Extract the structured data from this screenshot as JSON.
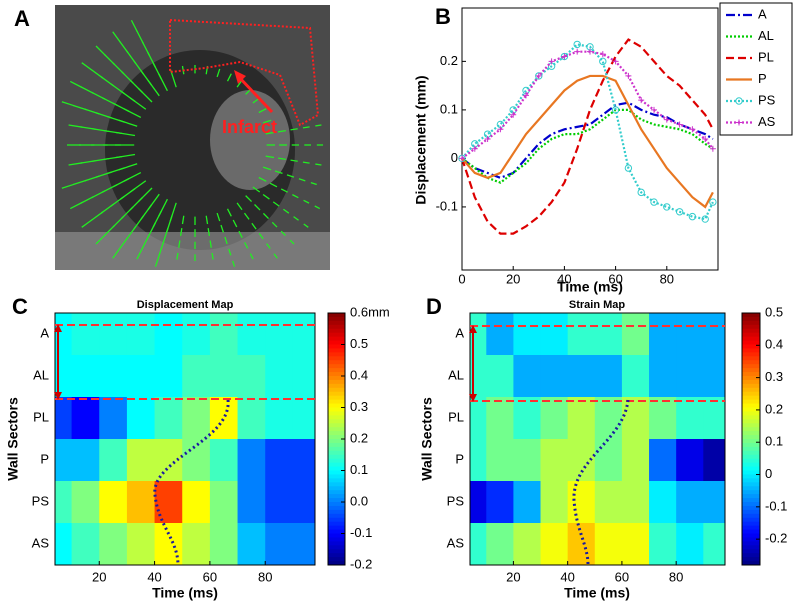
{
  "chart_data": [
    {
      "type": "image",
      "panel": "A",
      "annotation": "Infarct"
    },
    {
      "type": "line",
      "panel": "B",
      "xlabel": "Time (ms)",
      "ylabel": "Displacement (mm)",
      "x": [
        0,
        5,
        10,
        15,
        20,
        25,
        30,
        35,
        40,
        45,
        50,
        55,
        60,
        65,
        70,
        75,
        80,
        85,
        90,
        95,
        98
      ],
      "xlim": [
        0,
        100
      ],
      "ylim": [
        -0.23,
        0.31
      ],
      "xticks": [
        0,
        20,
        40,
        60,
        80
      ],
      "yticks": [
        -0.1,
        0,
        0.1,
        0.2
      ],
      "series": [
        {
          "name": "A",
          "color": "#0000cc",
          "dash": "9,3,2,3",
          "marker": "none",
          "values": [
            0,
            -0.02,
            -0.03,
            -0.04,
            -0.03,
            0,
            0.03,
            0.05,
            0.06,
            0.065,
            0.07,
            0.09,
            0.11,
            0.115,
            0.1,
            0.09,
            0.085,
            0.07,
            0.06,
            0.05,
            0.04
          ]
        },
        {
          "name": "AL",
          "color": "#00cc00",
          "dash": "2,2",
          "marker": "none",
          "values": [
            0,
            -0.02,
            -0.04,
            -0.05,
            -0.03,
            -0.01,
            0.02,
            0.04,
            0.05,
            0.05,
            0.06,
            0.08,
            0.1,
            0.1,
            0.08,
            0.07,
            0.065,
            0.06,
            0.05,
            0.03,
            0.02
          ]
        },
        {
          "name": "PL",
          "color": "#dd0000",
          "dash": "8,4",
          "marker": "none",
          "values": [
            0,
            -0.08,
            -0.13,
            -0.155,
            -0.155,
            -0.14,
            -0.12,
            -0.09,
            -0.05,
            0.02,
            0.1,
            0.16,
            0.21,
            0.245,
            0.23,
            0.2,
            0.17,
            0.15,
            0.12,
            0.09,
            0.06
          ]
        },
        {
          "name": "P",
          "color": "#e87722",
          "dash": "none",
          "marker": "none",
          "values": [
            0,
            -0.03,
            -0.04,
            -0.03,
            0.01,
            0.05,
            0.08,
            0.11,
            0.14,
            0.16,
            0.17,
            0.17,
            0.16,
            0.11,
            0.06,
            0.02,
            -0.02,
            -0.05,
            -0.08,
            -0.1,
            -0.07
          ]
        },
        {
          "name": "PS",
          "color": "#33cccc",
          "dash": "2,2",
          "marker": "circle",
          "values": [
            0,
            0.03,
            0.05,
            0.07,
            0.1,
            0.14,
            0.17,
            0.19,
            0.21,
            0.235,
            0.23,
            0.2,
            0.1,
            -0.02,
            -0.07,
            -0.09,
            -0.1,
            -0.11,
            -0.12,
            -0.125,
            -0.09
          ]
        },
        {
          "name": "AS",
          "color": "#cc33cc",
          "dash": "2,2",
          "marker": "plus",
          "values": [
            0,
            0.02,
            0.04,
            0.06,
            0.09,
            0.13,
            0.17,
            0.2,
            0.21,
            0.22,
            0.22,
            0.215,
            0.2,
            0.17,
            0.12,
            0.1,
            0.08,
            0.07,
            0.06,
            0.04,
            0.02
          ]
        }
      ]
    },
    {
      "type": "heatmap",
      "panel": "C",
      "title": "Displacement Map",
      "xlabel": "Time (ms)",
      "ylabel": "Wall Sectors",
      "categories": [
        "A",
        "AL",
        "PL",
        "P",
        "PS",
        "AS"
      ],
      "x": [
        5,
        15,
        25,
        35,
        45,
        55,
        65,
        75,
        85,
        95
      ],
      "xlim": [
        4,
        98
      ],
      "xticks": [
        20,
        40,
        60,
        80
      ],
      "clim": [
        -0.2,
        0.6
      ],
      "cticks": [
        {
          "value": 0.6,
          "label": "0.6mm"
        },
        0.5,
        0.4,
        0.3,
        0.2,
        0.1,
        {
          "value": 0,
          "label": "0.0"
        },
        -0.1,
        -0.2
      ],
      "values": [
        [
          0.1,
          0.12,
          0.12,
          0.12,
          0.1,
          0.12,
          0.15,
          0.12,
          0.12,
          0.12
        ],
        [
          0.1,
          0.1,
          0.1,
          0.1,
          0.1,
          0.15,
          0.15,
          0.15,
          0.12,
          0.12
        ],
        [
          -0.05,
          -0.1,
          0,
          0.1,
          0.15,
          0.2,
          0.3,
          0.15,
          0.12,
          0.12
        ],
        [
          0.05,
          0.05,
          0.15,
          0.25,
          0.25,
          0.2,
          0.15,
          0,
          -0.05,
          -0.05
        ],
        [
          0.15,
          0.2,
          0.3,
          0.35,
          0.45,
          0.3,
          0.2,
          0,
          -0.05,
          -0.05
        ],
        [
          0.1,
          0.15,
          0.2,
          0.25,
          0.3,
          0.25,
          0.2,
          0.05,
          0,
          0
        ]
      ]
    },
    {
      "type": "heatmap",
      "panel": "D",
      "title": "Strain Map",
      "xlabel": "Time (ms)",
      "ylabel": "Wall Sectors",
      "categories": [
        "A",
        "AL",
        "PL",
        "P",
        "PS",
        "AS"
      ],
      "x": [
        5,
        15,
        25,
        35,
        45,
        55,
        65,
        75,
        85,
        95
      ],
      "xlim": [
        4,
        98
      ],
      "xticks": [
        20,
        40,
        60,
        80
      ],
      "clim": [
        -0.28,
        0.5
      ],
      "cticks": [
        0.5,
        0.4,
        0.3,
        0.2,
        0.1,
        0,
        -0.1,
        -0.2
      ],
      "values": [
        [
          0.05,
          -0.05,
          0,
          0,
          0.05,
          0.05,
          0.1,
          -0.05,
          -0.05,
          -0.05
        ],
        [
          0.05,
          0.05,
          -0.05,
          -0.05,
          -0.05,
          -0.05,
          0.05,
          -0.05,
          -0.05,
          -0.05
        ],
        [
          0.05,
          0.1,
          0.05,
          0.1,
          0.15,
          0.1,
          0.15,
          0.1,
          0.05,
          0.05
        ],
        [
          0.05,
          0.1,
          0.1,
          0.15,
          0.15,
          0.1,
          0.15,
          -0.1,
          -0.2,
          -0.25
        ],
        [
          -0.2,
          -0.15,
          -0.05,
          0.15,
          0.2,
          0.15,
          0.15,
          0,
          -0.05,
          -0.05
        ],
        [
          0.05,
          0.1,
          0.15,
          0.2,
          0.25,
          0.2,
          0.2,
          0.05,
          0,
          0.05
        ]
      ]
    }
  ]
}
